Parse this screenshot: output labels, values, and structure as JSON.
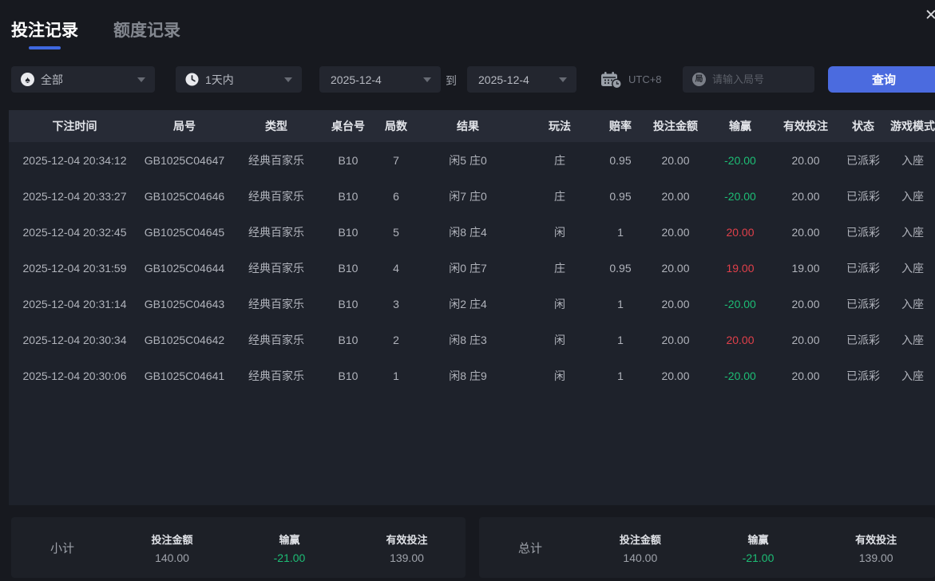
{
  "window": {
    "close_icon": "✕"
  },
  "tabs": [
    {
      "label": "投注记录",
      "active": true
    },
    {
      "label": "额度记录",
      "active": false
    }
  ],
  "filters": {
    "category": {
      "value": "全部",
      "icon": "spade-icon"
    },
    "range": {
      "value": "1天内",
      "icon": "clock-icon"
    },
    "date_from": "2025-12-4",
    "to_label": "到",
    "date_to": "2025-12-4",
    "timezone": "UTC+8",
    "search": {
      "placeholder": "请输入局号",
      "value": "",
      "icon_char": "局"
    },
    "query_button": "查询"
  },
  "table": {
    "columns": [
      "下注时间",
      "局号",
      "类型",
      "桌台号",
      "局数",
      "结果",
      "玩法",
      "赔率",
      "投注金额",
      "输赢",
      "有效投注",
      "状态",
      "游戏模式"
    ],
    "rows": [
      {
        "time": "2025-12-04 20:34:12",
        "game_id": "GB1025C04647",
        "type": "经典百家乐",
        "table_no": "B10",
        "round": "7",
        "result": "闲5 庄0",
        "play": "庄",
        "odds": "0.95",
        "bet": "20.00",
        "win": "-20.00",
        "win_color": "green",
        "valid": "20.00",
        "status": "已派彩",
        "mode": "入座"
      },
      {
        "time": "2025-12-04 20:33:27",
        "game_id": "GB1025C04646",
        "type": "经典百家乐",
        "table_no": "B10",
        "round": "6",
        "result": "闲7 庄0",
        "play": "庄",
        "odds": "0.95",
        "bet": "20.00",
        "win": "-20.00",
        "win_color": "green",
        "valid": "20.00",
        "status": "已派彩",
        "mode": "入座"
      },
      {
        "time": "2025-12-04 20:32:45",
        "game_id": "GB1025C04645",
        "type": "经典百家乐",
        "table_no": "B10",
        "round": "5",
        "result": "闲8 庄4",
        "play": "闲",
        "odds": "1",
        "bet": "20.00",
        "win": "20.00",
        "win_color": "red",
        "valid": "20.00",
        "status": "已派彩",
        "mode": "入座"
      },
      {
        "time": "2025-12-04 20:31:59",
        "game_id": "GB1025C04644",
        "type": "经典百家乐",
        "table_no": "B10",
        "round": "4",
        "result": "闲0 庄7",
        "play": "庄",
        "odds": "0.95",
        "bet": "20.00",
        "win": "19.00",
        "win_color": "red",
        "valid": "19.00",
        "status": "已派彩",
        "mode": "入座"
      },
      {
        "time": "2025-12-04 20:31:14",
        "game_id": "GB1025C04643",
        "type": "经典百家乐",
        "table_no": "B10",
        "round": "3",
        "result": "闲2 庄4",
        "play": "闲",
        "odds": "1",
        "bet": "20.00",
        "win": "-20.00",
        "win_color": "green",
        "valid": "20.00",
        "status": "已派彩",
        "mode": "入座"
      },
      {
        "time": "2025-12-04 20:30:34",
        "game_id": "GB1025C04642",
        "type": "经典百家乐",
        "table_no": "B10",
        "round": "2",
        "result": "闲8 庄3",
        "play": "闲",
        "odds": "1",
        "bet": "20.00",
        "win": "20.00",
        "win_color": "red",
        "valid": "20.00",
        "status": "已派彩",
        "mode": "入座"
      },
      {
        "time": "2025-12-04 20:30:06",
        "game_id": "GB1025C04641",
        "type": "经典百家乐",
        "table_no": "B10",
        "round": "1",
        "result": "闲8 庄9",
        "play": "闲",
        "odds": "1",
        "bet": "20.00",
        "win": "-20.00",
        "win_color": "green",
        "valid": "20.00",
        "status": "已派彩",
        "mode": "入座"
      }
    ]
  },
  "summary": {
    "subtotal": {
      "label": "小计",
      "stats": [
        {
          "label": "投注金额",
          "value": "140.00",
          "color": "default"
        },
        {
          "label": "输赢",
          "value": "-21.00",
          "color": "green"
        },
        {
          "label": "有效投注",
          "value": "139.00",
          "color": "default"
        }
      ]
    },
    "total": {
      "label": "总计",
      "stats": [
        {
          "label": "投注金额",
          "value": "140.00",
          "color": "default"
        },
        {
          "label": "输赢",
          "value": "-21.00",
          "color": "green"
        },
        {
          "label": "有效投注",
          "value": "139.00",
          "color": "default"
        }
      ]
    }
  },
  "colors": {
    "accent": "#4b6bdf",
    "win_red": "#e0404a",
    "loss_green": "#1dbd75",
    "tab_underline": "#3f68e0"
  }
}
